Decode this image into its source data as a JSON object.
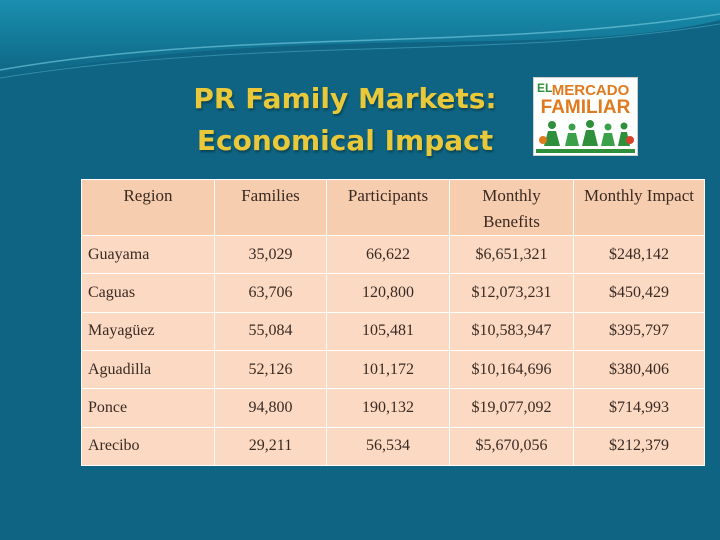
{
  "slide": {
    "title_line1": "PR Family Markets:",
    "title_line2": "Economical Impact",
    "colors": {
      "background": "#0e6482",
      "title": "#e9c93a",
      "table_header": "#f6cdae",
      "table_cell": "#fbd9c3",
      "logo_orange": "#e07a1f",
      "logo_green": "#2f8f3a"
    }
  },
  "logo": {
    "prefix": "EL",
    "word1": "MERCADO",
    "word2": "FAMILIAR"
  },
  "table": {
    "headers": [
      "Region",
      "Families",
      "Participants",
      "Monthly Benefits",
      "Monthly Impact"
    ],
    "rows": [
      [
        "Guayama",
        "35,029",
        "66,622",
        "$6,651,321",
        "$248,142"
      ],
      [
        "Caguas",
        "63,706",
        "120,800",
        "$12,073,231",
        "$450,429"
      ],
      [
        "Mayagüez",
        "55,084",
        "105,481",
        "$10,583,947",
        "$395,797"
      ],
      [
        "Aguadilla",
        "52,126",
        "101,172",
        "$10,164,696",
        "$380,406"
      ],
      [
        "Ponce",
        "94,800",
        "190,132",
        "$19,077,092",
        "$714,993"
      ],
      [
        "Arecibo",
        "29,211",
        "56,534",
        "$5,670,056",
        "$212,379"
      ]
    ]
  }
}
